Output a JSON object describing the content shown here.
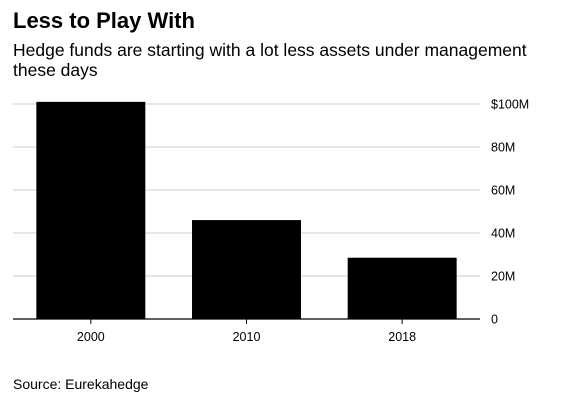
{
  "chart_data": {
    "type": "bar",
    "title": "Less to Play With",
    "subtitle": "Hedge funds are starting with a lot less assets under management these days",
    "categories": [
      "2000",
      "2010",
      "2018"
    ],
    "values": [
      101,
      46,
      28.5
    ],
    "ylim": [
      0,
      100
    ],
    "y_ticks": [
      0,
      20,
      40,
      60,
      80,
      100
    ],
    "y_tick_labels": [
      "0",
      "20M",
      "40M",
      "60M",
      "80M",
      "$100M"
    ],
    "y_axis_position": "right",
    "grid": true,
    "bar_color": "#000000",
    "grid_color": "#cccccc",
    "source": "Source: Eurekahedge"
  }
}
